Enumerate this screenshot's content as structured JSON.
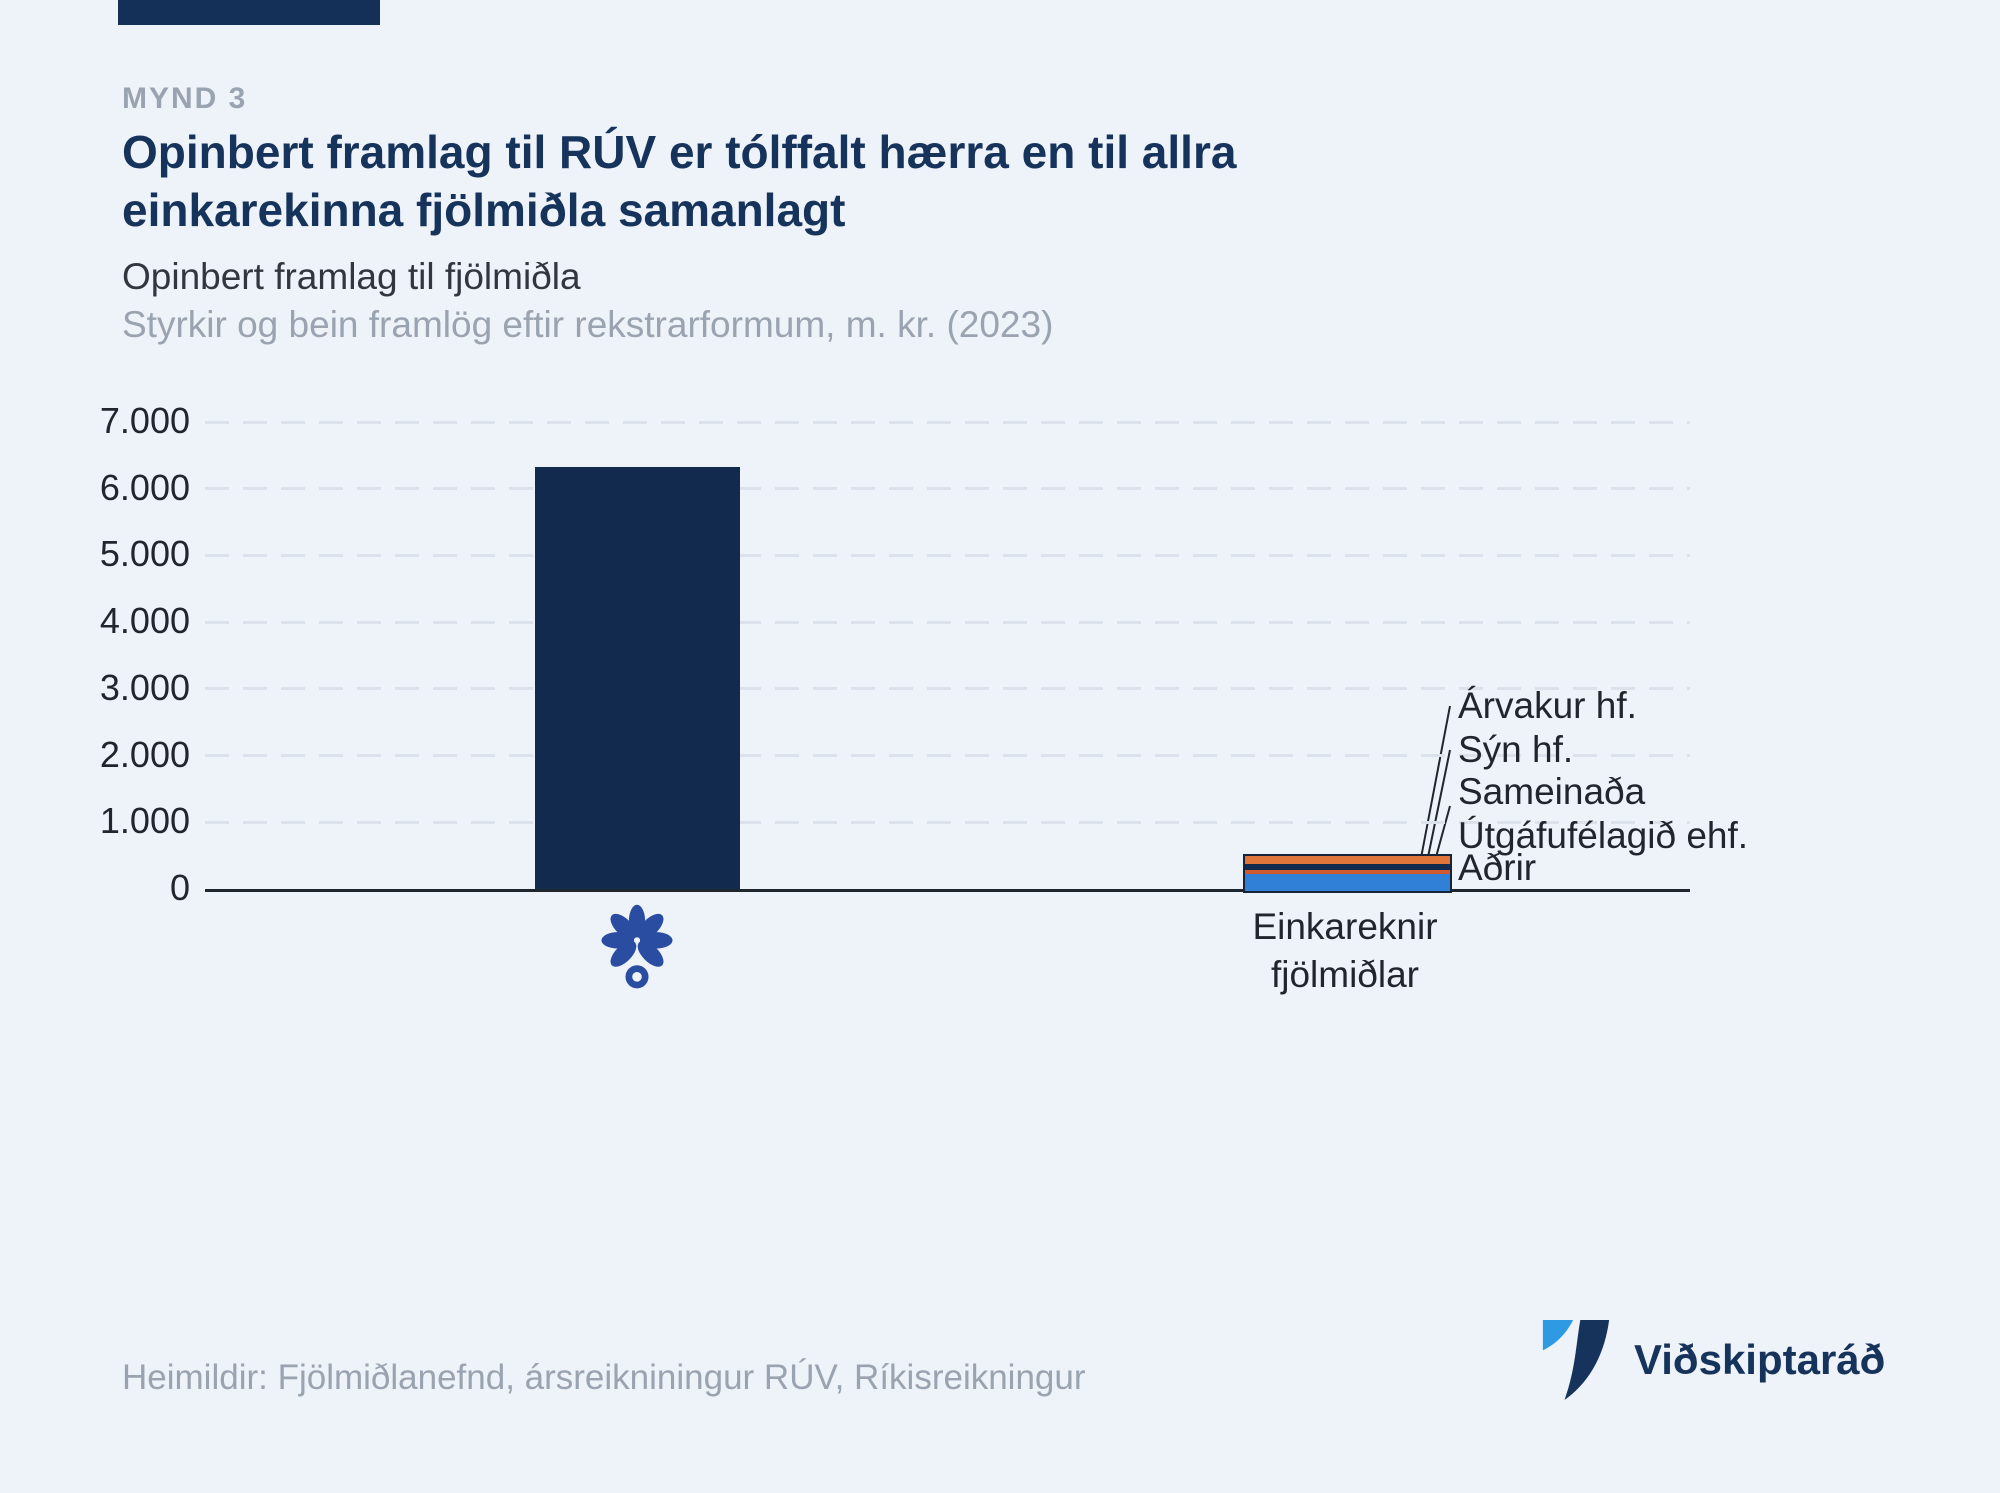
{
  "page": {
    "figure_label": "MYND 3",
    "title": "Opinbert framlag til RÚV er tólffalt hærra en til allra einkarekinna fjölmiðla samanlagt"
  },
  "chart_data": {
    "type": "bar",
    "stacked": true,
    "title": "Opinbert framlag til fjölmiðla",
    "subtitle": "Styrkir og bein framlög eftir rekstrarformum, m. kr. (2023)",
    "unit": "m. kr.",
    "year": "2023",
    "categories": [
      "RÚV",
      "Einkareknir fjölmiðlar"
    ],
    "ylim": [
      0,
      7000
    ],
    "yticks": [
      0,
      1000,
      2000,
      3000,
      4000,
      5000,
      6000,
      7000
    ],
    "ytick_labels": [
      "0",
      "1.000",
      "2.000",
      "3.000",
      "4.000",
      "5.000",
      "6.000",
      "7.000"
    ],
    "grid": "horizontal-dashed",
    "legend_position": "annotations-right",
    "bars": [
      {
        "category": "RÚV",
        "segments": [
          {
            "label": "RÚV",
            "value": 6330,
            "color": "#122a4d"
          }
        ]
      },
      {
        "category": "Einkareknir fjölmiðlar",
        "segments": [
          {
            "label": "Aðrir",
            "value": 260,
            "color": "#2f80d6"
          },
          {
            "label": "Sameinaða Útgáfufélagið ehf.",
            "value": 60,
            "color": "#d05a30"
          },
          {
            "label": "Sýn hf.",
            "value": 90,
            "color": "#122a4d"
          },
          {
            "label": "Árvakur hf.",
            "value": 120,
            "color": "#e0763a"
          }
        ]
      }
    ],
    "annotations": [
      {
        "lines": [
          "Árvakur hf."
        ]
      },
      {
        "lines": [
          "Sýn hf."
        ]
      },
      {
        "lines": [
          "Sameinaða",
          "Útgáfufélagið ehf."
        ]
      },
      {
        "lines": [
          "Aðrir"
        ]
      }
    ]
  },
  "footer": {
    "sources": "Heimildir: Fjölmiðlanefnd, ársreikniningur RÚV, Ríkisreikningur"
  },
  "brand": {
    "name": "Viðskiptaráð",
    "colors": {
      "dark_navy": "#16335b",
      "light_blue": "#2e9ae4",
      "ruv_blue": "#2a4da1"
    }
  }
}
